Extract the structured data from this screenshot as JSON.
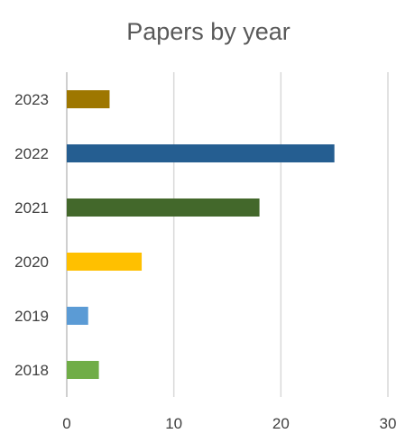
{
  "chart_data": {
    "type": "bar",
    "orientation": "horizontal",
    "title": "Papers by year",
    "xlabel": "",
    "ylabel": "",
    "categories": [
      "2018",
      "2019",
      "2020",
      "2021",
      "2022",
      "2023"
    ],
    "values": [
      3,
      2,
      7,
      18,
      25,
      4
    ],
    "colors": [
      "#70ad47",
      "#5b9bd5",
      "#ffc000",
      "#43682b",
      "#255e91",
      "#9e7700"
    ],
    "xlim": [
      0,
      30
    ],
    "xticks": [
      0,
      10,
      20,
      30
    ],
    "grid": true,
    "legend": "none"
  }
}
